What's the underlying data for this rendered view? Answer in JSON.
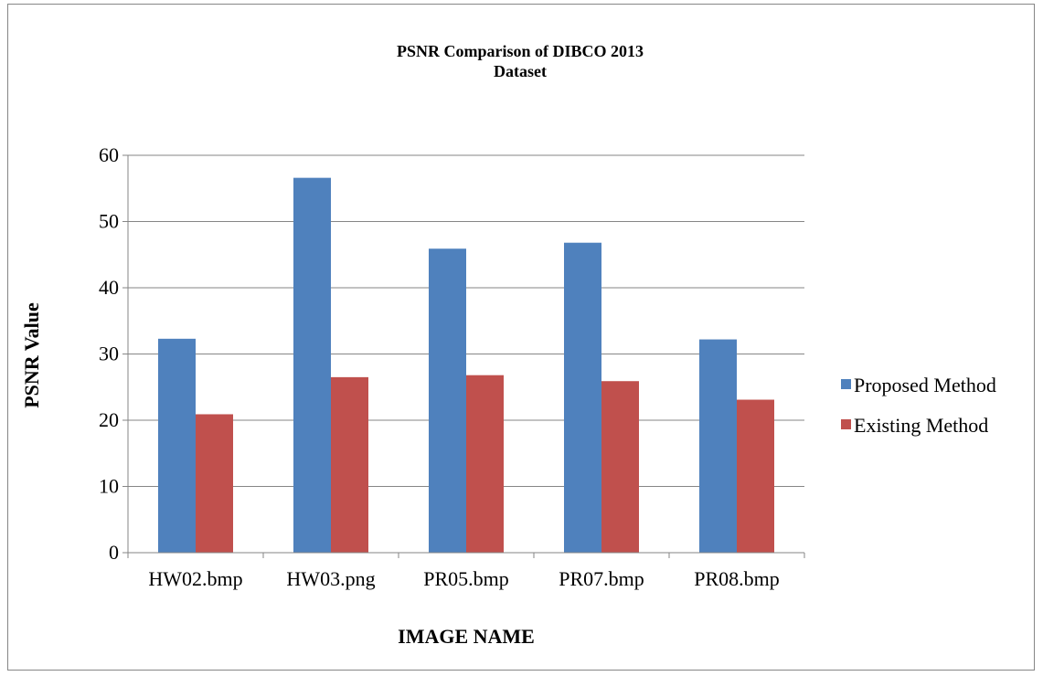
{
  "chart_data": {
    "type": "bar",
    "title_lines": [
      "PSNR Comparison of  DIBCO 2013",
      "Dataset"
    ],
    "xlabel": "IMAGE NAME",
    "ylabel": "PSNR Value",
    "categories": [
      "HW02.bmp",
      "HW03.png",
      "PR05.bmp",
      "PR07.bmp",
      "PR08.bmp"
    ],
    "series": [
      {
        "name": "Proposed Method",
        "color": "#4F81BD",
        "values": [
          32.3,
          56.6,
          45.9,
          46.8,
          32.2
        ]
      },
      {
        "name": "Existing Method",
        "color": "#C0504D",
        "values": [
          20.9,
          26.5,
          26.8,
          25.9,
          23.1
        ]
      }
    ],
    "ylim": [
      0,
      60
    ],
    "yticks": [
      0,
      10,
      20,
      30,
      40,
      50,
      60
    ],
    "grid": true,
    "legend_position": "right"
  }
}
